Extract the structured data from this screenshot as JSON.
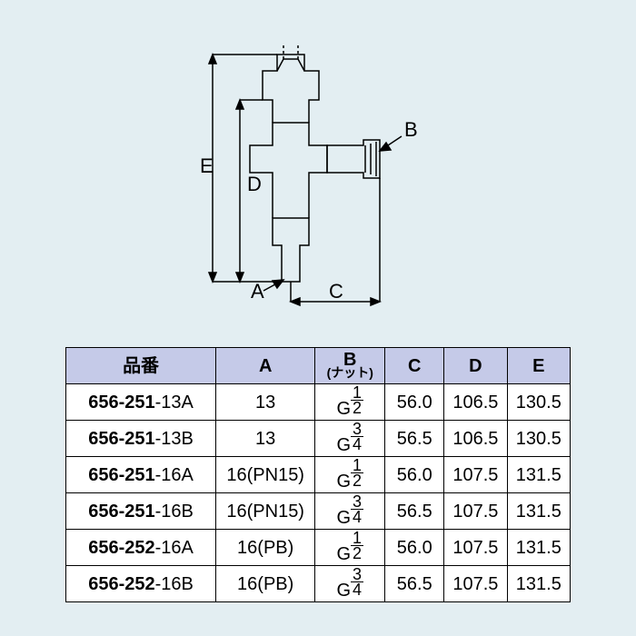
{
  "background_color": "#e3eef2",
  "diagram": {
    "type": "technical-drawing",
    "stroke": "#000000",
    "stroke_width": 1.5,
    "dim_labels": {
      "A": "A",
      "B": "B",
      "C": "C",
      "D": "D",
      "E": "E"
    },
    "label_fontsize": 20
  },
  "table": {
    "type": "table",
    "header_bg": "#c5cae8",
    "row_bg": "#ffffff",
    "border_color": "#000000",
    "columns": [
      {
        "key": "product",
        "label": "品番",
        "width": 170
      },
      {
        "key": "A",
        "label": "A",
        "width": 110
      },
      {
        "key": "B",
        "label": "B",
        "sublabel": "(ナット)",
        "width": 80
      },
      {
        "key": "C",
        "label": "C",
        "width": 66
      },
      {
        "key": "D",
        "label": "D",
        "width": 70
      },
      {
        "key": "E",
        "label": "E",
        "width": 70
      }
    ],
    "rows": [
      {
        "pbold": "656-251",
        "psuffix": "-13A",
        "A": "13",
        "Bpre": "G",
        "Bnum": "1",
        "Bden": "2",
        "C": "56.0",
        "D": "106.5",
        "E": "130.5"
      },
      {
        "pbold": "656-251",
        "psuffix": "-13B",
        "A": "13",
        "Bpre": "G",
        "Bnum": "3",
        "Bden": "4",
        "C": "56.5",
        "D": "106.5",
        "E": "130.5"
      },
      {
        "pbold": "656-251",
        "psuffix": "-16A",
        "A": "16(PN15)",
        "Bpre": "G",
        "Bnum": "1",
        "Bden": "2",
        "C": "56.0",
        "D": "107.5",
        "E": "131.5"
      },
      {
        "pbold": "656-251",
        "psuffix": "-16B",
        "A": "16(PN15)",
        "Bpre": "G",
        "Bnum": "3",
        "Bden": "4",
        "C": "56.5",
        "D": "107.5",
        "E": "131.5"
      },
      {
        "pbold": "656-252",
        "psuffix": "-16A",
        "A": "16(PB)",
        "Bpre": "G",
        "Bnum": "1",
        "Bden": "2",
        "C": "56.0",
        "D": "107.5",
        "E": "131.5"
      },
      {
        "pbold": "656-252",
        "psuffix": "-16B",
        "A": "16(PB)",
        "Bpre": "G",
        "Bnum": "3",
        "Bden": "4",
        "C": "56.5",
        "D": "107.5",
        "E": "131.5"
      }
    ]
  }
}
